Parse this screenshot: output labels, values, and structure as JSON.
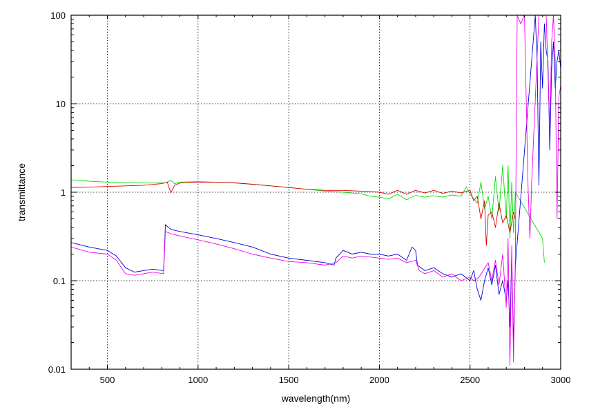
{
  "chart_data": {
    "type": "line",
    "title": "",
    "xlabel": "wavelength(nm)",
    "ylabel": "transmittance",
    "xlim": [
      300,
      3000
    ],
    "ylim": [
      0.01,
      100
    ],
    "yscale": "log",
    "grid": true,
    "legend": "none",
    "x_ticks": [
      500,
      1000,
      1500,
      2000,
      2500,
      3000
    ],
    "x_tick_labels": [
      "500",
      "1000",
      "1500",
      "2000",
      "2500",
      "3000"
    ],
    "y_ticks": [
      0.01,
      0.1,
      1,
      10,
      100
    ],
    "y_tick_labels": [
      "0.01",
      "0.1",
      "1",
      "10",
      "100"
    ],
    "series": [
      {
        "color": "#00dd00",
        "points": [
          [
            300,
            1.38
          ],
          [
            400,
            1.33
          ],
          [
            500,
            1.3
          ],
          [
            600,
            1.28
          ],
          [
            700,
            1.27
          ],
          [
            800,
            1.27
          ],
          [
            820,
            1.28
          ],
          [
            850,
            1.36
          ],
          [
            870,
            1.25
          ],
          [
            900,
            1.3
          ],
          [
            1000,
            1.32
          ],
          [
            1100,
            1.3
          ],
          [
            1200,
            1.27
          ],
          [
            1300,
            1.23
          ],
          [
            1400,
            1.18
          ],
          [
            1500,
            1.13
          ],
          [
            1600,
            1.08
          ],
          [
            1700,
            1.03
          ],
          [
            1800,
            1.0
          ],
          [
            1900,
            0.96
          ],
          [
            1950,
            0.9
          ],
          [
            2000,
            0.88
          ],
          [
            2050,
            0.84
          ],
          [
            2100,
            0.95
          ],
          [
            2150,
            0.82
          ],
          [
            2200,
            0.92
          ],
          [
            2250,
            0.88
          ],
          [
            2300,
            0.91
          ],
          [
            2350,
            0.88
          ],
          [
            2400,
            0.93
          ],
          [
            2450,
            0.9
          ],
          [
            2480,
            1.15
          ],
          [
            2500,
            0.95
          ],
          [
            2520,
            0.85
          ],
          [
            2540,
            0.75
          ],
          [
            2560,
            1.3
          ],
          [
            2580,
            0.65
          ],
          [
            2600,
            0.9
          ],
          [
            2620,
            0.5
          ],
          [
            2640,
            1.5
          ],
          [
            2660,
            0.6
          ],
          [
            2680,
            2.0
          ],
          [
            2700,
            0.5
          ],
          [
            2710,
            2.0
          ],
          [
            2720,
            0.3
          ],
          [
            2730,
            1.3
          ],
          [
            2740,
            0.35
          ],
          [
            2750,
            1.0
          ],
          [
            2900,
            0.3
          ],
          [
            2910,
            0.16
          ]
        ]
      },
      {
        "color": "#dd0000",
        "points": [
          [
            300,
            1.13
          ],
          [
            400,
            1.14
          ],
          [
            500,
            1.16
          ],
          [
            600,
            1.18
          ],
          [
            700,
            1.2
          ],
          [
            800,
            1.25
          ],
          [
            830,
            1.3
          ],
          [
            850,
            0.98
          ],
          [
            870,
            1.2
          ],
          [
            900,
            1.27
          ],
          [
            1000,
            1.3
          ],
          [
            1100,
            1.3
          ],
          [
            1200,
            1.28
          ],
          [
            1300,
            1.23
          ],
          [
            1400,
            1.18
          ],
          [
            1500,
            1.13
          ],
          [
            1600,
            1.08
          ],
          [
            1700,
            1.05
          ],
          [
            1800,
            1.05
          ],
          [
            1900,
            1.03
          ],
          [
            2000,
            1.0
          ],
          [
            2050,
            0.95
          ],
          [
            2100,
            1.05
          ],
          [
            2150,
            0.95
          ],
          [
            2200,
            1.05
          ],
          [
            2250,
            0.98
          ],
          [
            2300,
            1.05
          ],
          [
            2350,
            0.97
          ],
          [
            2400,
            1.03
          ],
          [
            2450,
            0.98
          ],
          [
            2500,
            1.05
          ],
          [
            2520,
            0.8
          ],
          [
            2540,
            0.9
          ],
          [
            2560,
            0.5
          ],
          [
            2580,
            0.8
          ],
          [
            2590,
            0.25
          ],
          [
            2600,
            0.55
          ],
          [
            2620,
            0.6
          ],
          [
            2640,
            0.4
          ],
          [
            2660,
            0.75
          ],
          [
            2680,
            0.45
          ],
          [
            2700,
            0.55
          ],
          [
            2720,
            0.35
          ],
          [
            2740,
            0.6
          ],
          [
            2750,
            0.5
          ]
        ]
      },
      {
        "color": "#0000dd",
        "points": [
          [
            300,
            0.27
          ],
          [
            400,
            0.24
          ],
          [
            500,
            0.22
          ],
          [
            550,
            0.19
          ],
          [
            600,
            0.14
          ],
          [
            650,
            0.125
          ],
          [
            700,
            0.13
          ],
          [
            750,
            0.135
          ],
          [
            810,
            0.13
          ],
          [
            820,
            0.43
          ],
          [
            850,
            0.38
          ],
          [
            900,
            0.36
          ],
          [
            1000,
            0.33
          ],
          [
            1100,
            0.3
          ],
          [
            1200,
            0.27
          ],
          [
            1300,
            0.24
          ],
          [
            1400,
            0.2
          ],
          [
            1500,
            0.18
          ],
          [
            1600,
            0.17
          ],
          [
            1700,
            0.16
          ],
          [
            1750,
            0.15
          ],
          [
            1760,
            0.18
          ],
          [
            1800,
            0.22
          ],
          [
            1850,
            0.2
          ],
          [
            1900,
            0.21
          ],
          [
            1950,
            0.2
          ],
          [
            2000,
            0.2
          ],
          [
            2050,
            0.19
          ],
          [
            2100,
            0.2
          ],
          [
            2150,
            0.17
          ],
          [
            2180,
            0.24
          ],
          [
            2200,
            0.22
          ],
          [
            2210,
            0.15
          ],
          [
            2250,
            0.13
          ],
          [
            2300,
            0.14
          ],
          [
            2350,
            0.12
          ],
          [
            2400,
            0.11
          ],
          [
            2450,
            0.12
          ],
          [
            2500,
            0.1
          ],
          [
            2520,
            0.13
          ],
          [
            2540,
            0.08
          ],
          [
            2560,
            0.06
          ],
          [
            2580,
            0.1
          ],
          [
            2600,
            0.14
          ],
          [
            2620,
            0.09
          ],
          [
            2640,
            0.15
          ],
          [
            2660,
            0.07
          ],
          [
            2680,
            0.1
          ],
          [
            2700,
            0.06
          ],
          [
            2710,
            0.1
          ],
          [
            2720,
            0.03
          ],
          [
            2730,
            0.2
          ],
          [
            2740,
            0.02
          ],
          [
            2750,
            0.15
          ],
          [
            2860,
            100
          ],
          [
            2870,
            30
          ],
          [
            2880,
            1.2
          ],
          [
            2890,
            50
          ],
          [
            2900,
            15
          ],
          [
            2910,
            80
          ],
          [
            2920,
            40
          ],
          [
            2930,
            30
          ],
          [
            2940,
            3
          ],
          [
            2950,
            25
          ],
          [
            2960,
            50
          ],
          [
            2970,
            15
          ],
          [
            2980,
            30
          ],
          [
            2990,
            40
          ],
          [
            3000,
            25
          ]
        ]
      },
      {
        "color": "#ee00ee",
        "points": [
          [
            300,
            0.24
          ],
          [
            400,
            0.21
          ],
          [
            500,
            0.2
          ],
          [
            550,
            0.17
          ],
          [
            600,
            0.12
          ],
          [
            650,
            0.115
          ],
          [
            700,
            0.12
          ],
          [
            750,
            0.125
          ],
          [
            810,
            0.12
          ],
          [
            820,
            0.36
          ],
          [
            850,
            0.34
          ],
          [
            900,
            0.32
          ],
          [
            1000,
            0.29
          ],
          [
            1100,
            0.26
          ],
          [
            1200,
            0.23
          ],
          [
            1300,
            0.2
          ],
          [
            1400,
            0.18
          ],
          [
            1500,
            0.165
          ],
          [
            1600,
            0.16
          ],
          [
            1700,
            0.15
          ],
          [
            1760,
            0.16
          ],
          [
            1800,
            0.19
          ],
          [
            1850,
            0.18
          ],
          [
            1900,
            0.19
          ],
          [
            1950,
            0.185
          ],
          [
            2000,
            0.18
          ],
          [
            2050,
            0.175
          ],
          [
            2100,
            0.18
          ],
          [
            2150,
            0.16
          ],
          [
            2200,
            0.17
          ],
          [
            2220,
            0.13
          ],
          [
            2250,
            0.12
          ],
          [
            2300,
            0.13
          ],
          [
            2350,
            0.11
          ],
          [
            2400,
            0.12
          ],
          [
            2450,
            0.1
          ],
          [
            2500,
            0.11
          ],
          [
            2520,
            0.1
          ],
          [
            2550,
            0.11
          ],
          [
            2600,
            0.16
          ],
          [
            2620,
            0.1
          ],
          [
            2640,
            0.17
          ],
          [
            2660,
            0.09
          ],
          [
            2680,
            0.2
          ],
          [
            2700,
            0.05
          ],
          [
            2710,
            0.3
          ],
          [
            2720,
            0.011
          ],
          [
            2730,
            0.25
          ],
          [
            2740,
            0.012
          ],
          [
            2750,
            0.2
          ],
          [
            2760,
            100
          ],
          [
            2780,
            80
          ],
          [
            2800,
            100
          ],
          [
            2820,
            1.2
          ],
          [
            2830,
            0.3
          ],
          [
            2840,
            1.3
          ],
          [
            2880,
            100
          ],
          [
            2900,
            100
          ],
          [
            2920,
            100
          ],
          [
            2940,
            5
          ],
          [
            2950,
            50
          ],
          [
            2960,
            100
          ],
          [
            2970,
            30
          ],
          [
            2980,
            0.5
          ],
          [
            2990,
            12
          ],
          [
            3000,
            16
          ]
        ]
      }
    ]
  }
}
